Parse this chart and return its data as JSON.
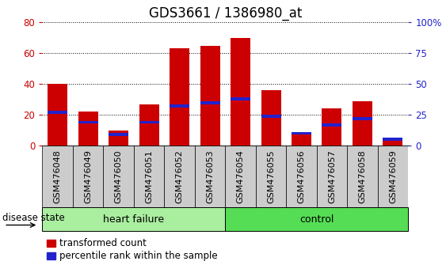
{
  "title": "GDS3661 / 1386980_at",
  "samples": [
    "GSM476048",
    "GSM476049",
    "GSM476050",
    "GSM476051",
    "GSM476052",
    "GSM476053",
    "GSM476054",
    "GSM476055",
    "GSM476056",
    "GSM476057",
    "GSM476058",
    "GSM476059"
  ],
  "transformed_count": [
    40,
    22,
    10,
    27,
    63,
    65,
    70,
    36,
    8,
    24,
    29,
    5
  ],
  "percentile_rank": [
    27,
    19,
    9,
    19,
    32,
    35,
    38,
    24,
    10,
    17,
    22,
    5
  ],
  "heart_failure_count": 6,
  "control_count": 6,
  "left_ylim": [
    0,
    80
  ],
  "right_ylim": [
    0,
    100
  ],
  "left_yticks": [
    0,
    20,
    40,
    60,
    80
  ],
  "right_yticks": [
    0,
    25,
    50,
    75,
    100
  ],
  "right_yticklabels": [
    "0",
    "25",
    "50",
    "75",
    "100%"
  ],
  "bar_color_red": "#cc0000",
  "bar_color_blue": "#2222cc",
  "bar_width": 0.65,
  "grid_color": "black",
  "hf_bg": "#aaeea0",
  "ctrl_bg": "#55dd55",
  "xtick_bg": "#cccccc",
  "label_disease_state": "disease state",
  "label_heart_failure": "heart failure",
  "label_control": "control",
  "legend_red": "transformed count",
  "legend_blue": "percentile rank within the sample",
  "title_fontsize": 12,
  "axis_fontsize": 8.5,
  "label_fontsize": 9,
  "tick_label_fontsize": 8
}
